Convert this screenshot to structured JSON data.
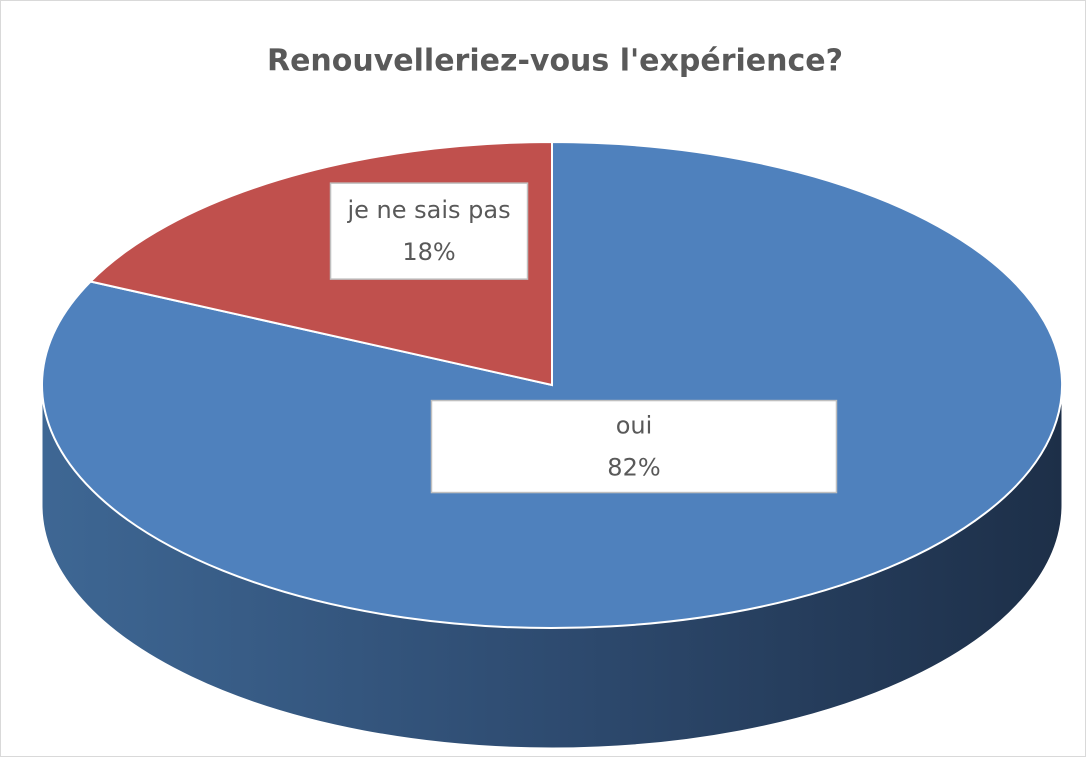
{
  "chart_data": {
    "type": "pie3d",
    "title": "Renouvelleriez-vous l'expérience?",
    "categories": [
      "oui",
      "je ne sais pas"
    ],
    "values": [
      82,
      18
    ],
    "value_labels": [
      "82%",
      "18%"
    ],
    "colors": [
      "#4f81bd",
      "#c0504d"
    ]
  }
}
